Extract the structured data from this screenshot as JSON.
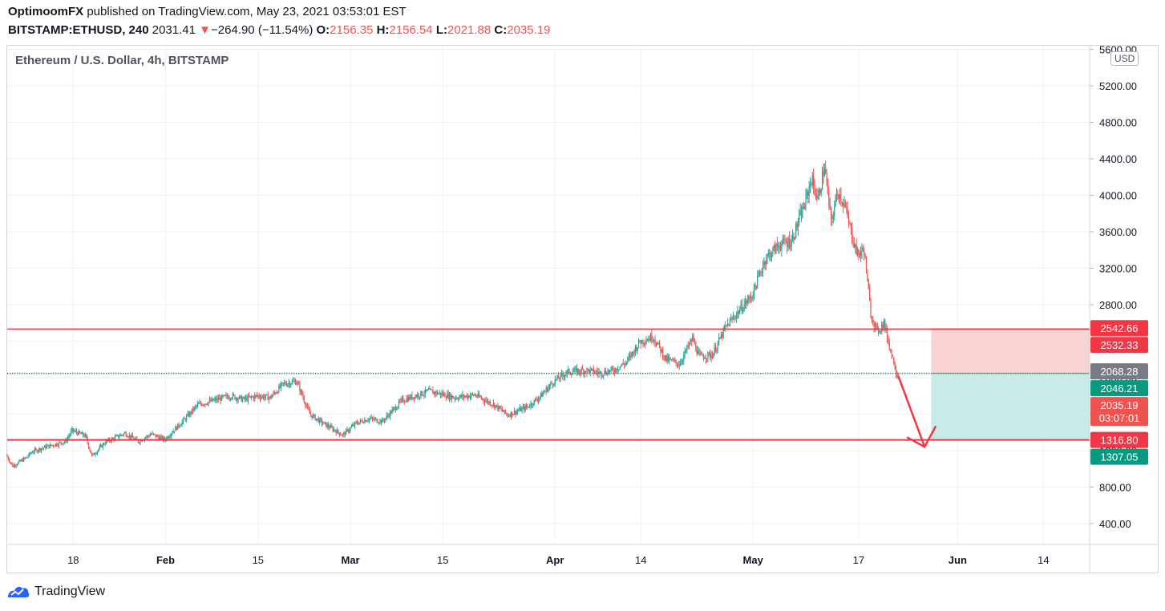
{
  "header": {
    "author": "OptimoomFX",
    "published_text": "published on TradingView.com, May 23, 2021 03:53:01 EST",
    "symbol": "BITSTAMP:ETHUSD, 240",
    "last": "2031.41",
    "change_arrow": "▼",
    "change": "−264.90 (−11.54%)",
    "o_label": "O:",
    "o_value": "2156.35",
    "h_label": "H:",
    "h_value": "2156.54",
    "l_label": "L:",
    "l_value": "2021.88",
    "c_label": "C:",
    "c_value": "2035.19"
  },
  "chart_title": "Ethereum / U.S. Dollar, 4h, BITSTAMP",
  "currency_badge": "USD",
  "footer": {
    "brand": "TradingView",
    "logo_icon": "tradingview-logo-icon"
  },
  "colors": {
    "up": "#26a69a",
    "down": "#ef5350",
    "line_red": "#f23645",
    "target_green": "#089981",
    "current_gray": "#787b86",
    "stop_zone": "#f8d3d3",
    "profit_zone": "#c8ebe7",
    "dotted": "#089981"
  },
  "chart_data": {
    "type": "candlestick",
    "title": "Ethereum / U.S. Dollar, 4h, BITSTAMP",
    "currency": "USD",
    "x_ticks": [
      "18",
      "Feb",
      "15",
      "Mar",
      "15",
      "Apr",
      "14",
      "May",
      "17",
      "Jun",
      "14"
    ],
    "x_tick_dates": [
      "2021-01-18",
      "2021-02-01",
      "2021-02-15",
      "2021-03-01",
      "2021-03-15",
      "2021-04-01",
      "2021-04-14",
      "2021-05-01",
      "2021-05-17",
      "2021-06-01",
      "2021-06-14"
    ],
    "x_range": [
      "2021-01-08",
      "2021-06-21"
    ],
    "y_ticks": [
      400,
      800,
      1200,
      1600,
      2000,
      2400,
      2800,
      3200,
      3600,
      4000,
      4400,
      4800,
      5200,
      5600
    ],
    "y_tick_labels": [
      "400.00",
      "800.00",
      "1200.00",
      "1600.00",
      "2000.00",
      "2400.00",
      "2800.00",
      "3200.00",
      "3600.00",
      "4000.00",
      "4400.00",
      "4800.00",
      "5200.00",
      "5600.00"
    ],
    "y_range": [
      170,
      5640
    ],
    "grid": true,
    "series_path": [
      [
        "2021-01-08",
        1150
      ],
      [
        "2021-01-09",
        1030
      ],
      [
        "2021-01-11",
        1120
      ],
      [
        "2021-01-12",
        1190
      ],
      [
        "2021-01-14",
        1240
      ],
      [
        "2021-01-17",
        1300
      ],
      [
        "2021-01-18",
        1420
      ],
      [
        "2021-01-20",
        1360
      ],
      [
        "2021-01-21",
        1140
      ],
      [
        "2021-01-23",
        1290
      ],
      [
        "2021-01-26",
        1390
      ],
      [
        "2021-01-28",
        1300
      ],
      [
        "2021-01-30",
        1380
      ],
      [
        "2021-02-01",
        1320
      ],
      [
        "2021-02-04",
        1540
      ],
      [
        "2021-02-06",
        1700
      ],
      [
        "2021-02-09",
        1760
      ],
      [
        "2021-02-11",
        1800
      ],
      [
        "2021-02-13",
        1760
      ],
      [
        "2021-02-15",
        1800
      ],
      [
        "2021-02-17",
        1780
      ],
      [
        "2021-02-19",
        1930
      ],
      [
        "2021-02-21",
        1960
      ],
      [
        "2021-02-23",
        1600
      ],
      [
        "2021-02-25",
        1500
      ],
      [
        "2021-02-28",
        1370
      ],
      [
        "2021-03-02",
        1500
      ],
      [
        "2021-03-04",
        1550
      ],
      [
        "2021-03-06",
        1520
      ],
      [
        "2021-03-09",
        1750
      ],
      [
        "2021-03-11",
        1800
      ],
      [
        "2021-03-13",
        1850
      ],
      [
        "2021-03-15",
        1820
      ],
      [
        "2021-03-17",
        1780
      ],
      [
        "2021-03-20",
        1810
      ],
      [
        "2021-03-23",
        1700
      ],
      [
        "2021-03-25",
        1590
      ],
      [
        "2021-03-28",
        1680
      ],
      [
        "2021-03-30",
        1800
      ],
      [
        "2021-04-01",
        1960
      ],
      [
        "2021-04-03",
        2060
      ],
      [
        "2021-04-06",
        2080
      ],
      [
        "2021-04-08",
        2050
      ],
      [
        "2021-04-10",
        2080
      ],
      [
        "2021-04-12",
        2170
      ],
      [
        "2021-04-14",
        2390
      ],
      [
        "2021-04-16",
        2450
      ],
      [
        "2021-04-18",
        2200
      ],
      [
        "2021-04-20",
        2150
      ],
      [
        "2021-04-22",
        2430
      ],
      [
        "2021-04-23",
        2230
      ],
      [
        "2021-04-25",
        2250
      ],
      [
        "2021-04-27",
        2550
      ],
      [
        "2021-04-29",
        2730
      ],
      [
        "2021-05-01",
        2900
      ],
      [
        "2021-05-03",
        3300
      ],
      [
        "2021-05-05",
        3450
      ],
      [
        "2021-05-07",
        3500
      ],
      [
        "2021-05-09",
        3900
      ],
      [
        "2021-05-10",
        4180
      ],
      [
        "2021-05-11",
        3950
      ],
      [
        "2021-05-12",
        4320
      ],
      [
        "2021-05-13",
        3700
      ],
      [
        "2021-05-14",
        4050
      ],
      [
        "2021-05-15",
        3900
      ],
      [
        "2021-05-16",
        3600
      ],
      [
        "2021-05-17",
        3350
      ],
      [
        "2021-05-18",
        3400
      ],
      [
        "2021-05-19",
        2700
      ],
      [
        "2021-05-20",
        2500
      ],
      [
        "2021-05-21",
        2600
      ],
      [
        "2021-05-22",
        2300
      ],
      [
        "2021-05-23",
        2035
      ]
    ],
    "horizontal_levels": [
      {
        "type": "resistance",
        "value": 2532.33
      },
      {
        "type": "support",
        "value": 1316.8
      },
      {
        "type": "entry",
        "value": 2046.21
      }
    ],
    "position_tool": {
      "start": "2021-05-28",
      "end": "2021-06-21",
      "stop": 2542.66,
      "entry": 2046.21,
      "target": 1307.05
    },
    "arrow_annotation": {
      "from": [
        "2021-05-23",
        2020
      ],
      "to": [
        "2021-05-27",
        1240
      ]
    },
    "price_labels": [
      {
        "value": "2542.66",
        "y": 2542.66,
        "color": "#f23645"
      },
      {
        "value": "2532.33",
        "y": 2532.33,
        "color": "#f23645"
      },
      {
        "value": "2068.28",
        "y": 2068.28,
        "color": "#787b86"
      },
      {
        "value": "2046.21",
        "y": 2046.21,
        "color": "#089981"
      },
      {
        "value": "2035.19",
        "y": 2035.19,
        "color": "#ef5350",
        "sub": "03:07:01"
      },
      {
        "value": "1316.80",
        "y": 1316.8,
        "color": "#f23645"
      },
      {
        "value": "1307.05",
        "y": 1307.05,
        "color": "#089981"
      }
    ]
  }
}
